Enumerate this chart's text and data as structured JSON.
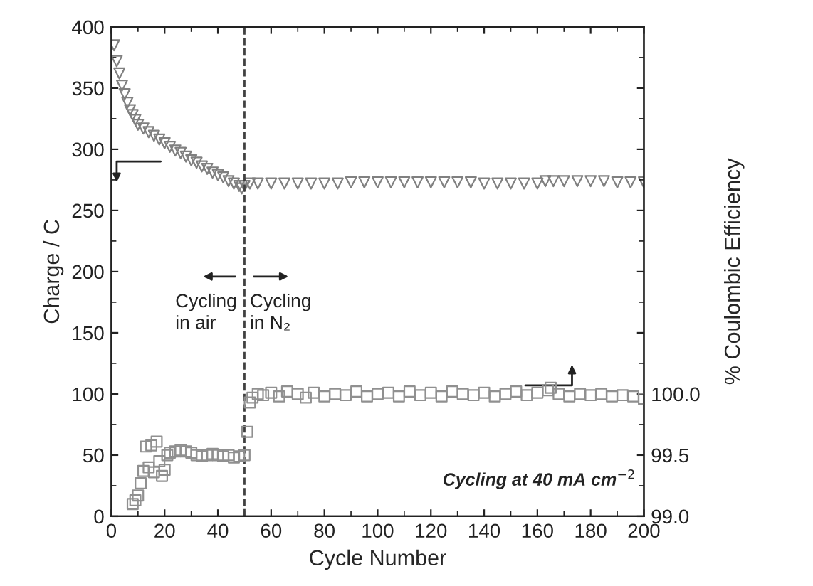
{
  "chart_data": {
    "type": "scatter",
    "xlabel": "Cycle Number",
    "ylabel": "Charge / C",
    "y2label": "% Coulombic Efficiency",
    "xlim": [
      0,
      200
    ],
    "xticks": [
      0,
      20,
      40,
      60,
      80,
      100,
      120,
      140,
      160,
      180,
      200
    ],
    "ylim": [
      0,
      400
    ],
    "yticks": [
      0,
      50,
      100,
      150,
      200,
      250,
      300,
      350,
      400
    ],
    "y2lim": [
      99.0,
      103.0
    ],
    "y2ticks": [
      {
        "value": 99.0,
        "label": "99.0"
      },
      {
        "value": 99.5,
        "label": "99.5"
      },
      {
        "value": 100.0,
        "label": "100.0"
      },
      {
        "value": 100.5,
        "label": null
      },
      {
        "value": 101.0,
        "label": null
      },
      {
        "value": 101.5,
        "label": null
      },
      {
        "value": 102.0,
        "label": null
      },
      {
        "value": 102.5,
        "label": null
      },
      {
        "value": 103.0,
        "label": null
      }
    ],
    "grid": false,
    "series": [
      {
        "color": "#808080",
        "marker": "triangle",
        "x": [
          1,
          2,
          3,
          4,
          5,
          6,
          7,
          8,
          9,
          10,
          12,
          14,
          16,
          18,
          20,
          22,
          24,
          26,
          28,
          30,
          32,
          34,
          36,
          38,
          40,
          42,
          44,
          46,
          48,
          49,
          50,
          52,
          55,
          60,
          65,
          70,
          75,
          80,
          85,
          90,
          95,
          100,
          105,
          110,
          115,
          120,
          125,
          130,
          135,
          140,
          145,
          150,
          155,
          160,
          163,
          166,
          170,
          175,
          180,
          185,
          190,
          195,
          200
        ],
        "values": [
          385,
          372,
          362,
          352,
          345,
          338,
          332,
          328,
          324,
          320,
          317,
          314,
          311,
          308,
          305,
          302,
          299,
          297,
          294,
          291,
          289,
          286,
          284,
          281,
          279,
          277,
          274,
          272,
          270,
          268,
          270,
          272,
          272,
          272,
          272,
          272,
          272,
          272,
          272,
          273,
          273,
          273,
          273,
          273,
          273,
          273,
          273,
          273,
          273,
          272,
          272,
          272,
          272,
          272,
          274,
          274,
          274,
          274,
          274,
          274,
          273,
          273,
          273
        ]
      },
      {
        "color": "#909090",
        "marker": "square",
        "axis": "y2",
        "x": [
          8,
          9,
          10,
          11,
          12,
          13,
          14,
          15,
          16,
          17,
          18,
          19,
          20,
          21,
          22,
          24,
          26,
          28,
          30,
          32,
          34,
          36,
          38,
          40,
          42,
          44,
          46,
          48,
          50,
          51,
          52,
          53,
          55,
          57,
          60,
          63,
          66,
          70,
          73,
          76,
          80,
          84,
          88,
          92,
          96,
          100,
          104,
          108,
          112,
          116,
          120,
          124,
          128,
          132,
          136,
          140,
          144,
          148,
          152,
          156,
          160,
          164,
          165,
          168,
          172,
          176,
          180,
          184,
          188,
          192,
          196,
          200
        ],
        "values": [
          99.1,
          99.13,
          99.17,
          99.27,
          99.37,
          99.57,
          99.4,
          99.58,
          99.36,
          99.61,
          99.45,
          99.33,
          99.38,
          99.5,
          99.52,
          99.53,
          99.54,
          99.53,
          99.52,
          99.5,
          99.49,
          99.5,
          99.51,
          99.5,
          99.49,
          99.5,
          99.48,
          99.49,
          99.5,
          99.69,
          99.93,
          99.97,
          100.0,
          99.99,
          100.01,
          99.98,
          100.02,
          100.0,
          99.97,
          100.01,
          99.98,
          100.0,
          99.99,
          100.02,
          99.98,
          100.0,
          100.01,
          99.98,
          100.02,
          99.99,
          100.01,
          99.98,
          100.02,
          100.0,
          99.99,
          100.01,
          99.98,
          100.0,
          100.02,
          99.99,
          100.01,
          100.03,
          100.05,
          100.0,
          99.98,
          100.0,
          99.99,
          100.0,
          99.98,
          99.99,
          99.98,
          99.96
        ]
      }
    ],
    "ref_lines": [
      {
        "axis": "x",
        "value": 50,
        "color": "#404040",
        "line_style": "dashed"
      }
    ],
    "annotations": [
      "Cycling\nin air",
      "Cycling\nin N₂",
      "Cycling at 40 mA cm$^{−2}$"
    ]
  }
}
